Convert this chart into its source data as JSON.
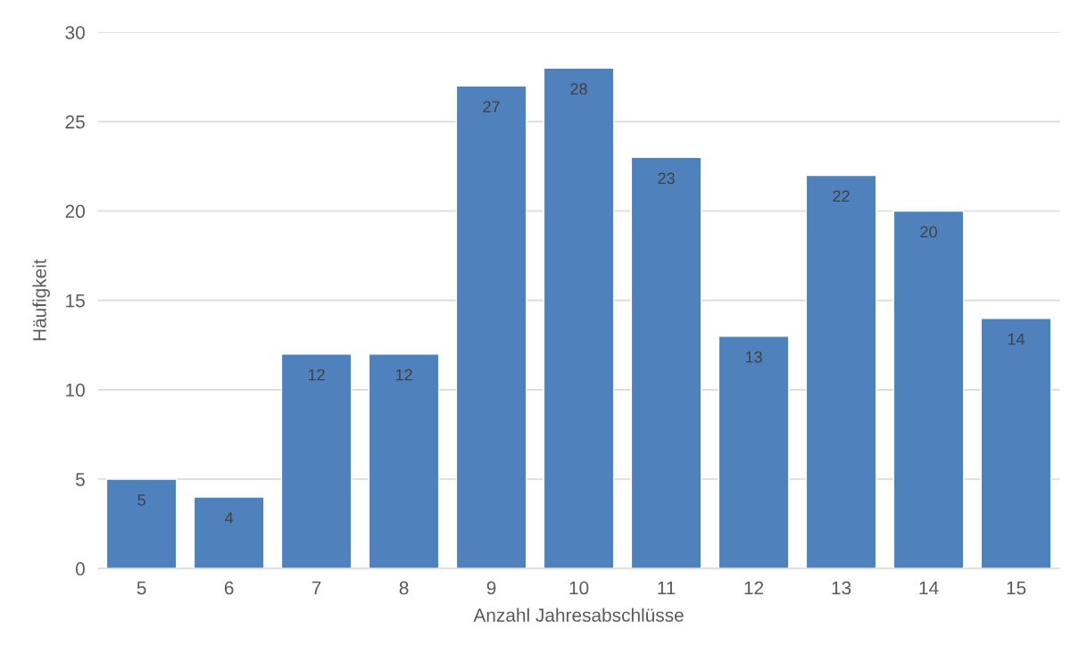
{
  "chart_data": {
    "type": "bar",
    "xlabel": "Anzahl Jahresabschlüsse",
    "ylabel": "Häufigkeit",
    "categories": [
      "5",
      "6",
      "7",
      "8",
      "9",
      "10",
      "11",
      "12",
      "13",
      "14",
      "15"
    ],
    "values": [
      5,
      4,
      12,
      12,
      27,
      28,
      23,
      13,
      22,
      20,
      14
    ],
    "color": "#4f81bd",
    "ylim": [
      0,
      30
    ],
    "yticks": [
      0,
      5,
      10,
      15,
      20,
      25,
      30
    ],
    "grid": "y",
    "data_labels": true
  }
}
